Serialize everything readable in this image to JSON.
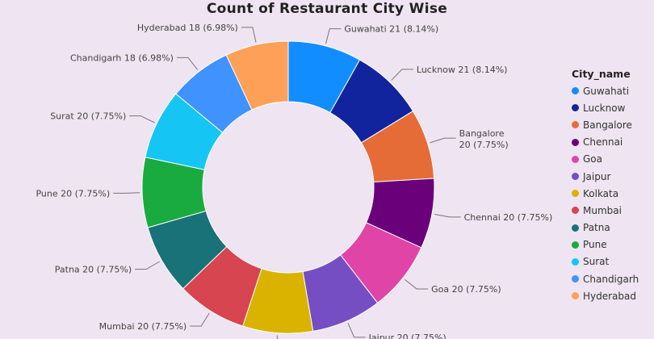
{
  "chart_data": {
    "type": "pie",
    "title": "Count of Restaurant City Wise",
    "legend_title": "City_name",
    "legend_position": "right",
    "slices": [
      {
        "label": "Guwahati",
        "value": 21,
        "percent": "8.14%",
        "color": "#118dff"
      },
      {
        "label": "Lucknow",
        "value": 21,
        "percent": "8.14%",
        "color": "#12239e"
      },
      {
        "label": "Bangalore",
        "value": 20,
        "percent": "7.75%",
        "color": "#e66c37"
      },
      {
        "label": "Chennai",
        "value": 20,
        "percent": "7.75%",
        "color": "#6b007b"
      },
      {
        "label": "Goa",
        "value": 20,
        "percent": "7.75%",
        "color": "#e044a7"
      },
      {
        "label": "Jaipur",
        "value": 20,
        "percent": "7.75%",
        "color": "#744ec2"
      },
      {
        "label": "Kolkata",
        "value": 20,
        "percent": "7.75%",
        "color": "#d9b300"
      },
      {
        "label": "Mumbai",
        "value": 20,
        "percent": "7.75%",
        "color": "#d64550"
      },
      {
        "label": "Patna",
        "value": 20,
        "percent": "7.75%",
        "color": "#197278"
      },
      {
        "label": "Pune",
        "value": 20,
        "percent": "7.75%",
        "color": "#1aab40"
      },
      {
        "label": "Surat",
        "value": 20,
        "percent": "7.75%",
        "color": "#15c6f4"
      },
      {
        "label": "Chandigarh",
        "value": 18,
        "percent": "6.98%",
        "color": "#4092ff"
      },
      {
        "label": "Hyderabad",
        "value": 18,
        "percent": "6.98%",
        "color": "#ffa058"
      }
    ]
  }
}
